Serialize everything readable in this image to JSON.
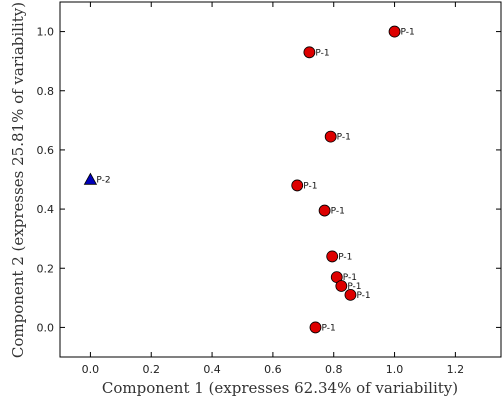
{
  "chart_data": {
    "type": "scatter",
    "xlabel": "Component 1 (expresses 62.34% of variability)",
    "ylabel": "Component 2 (expresses 25.81% of variability)",
    "xlim": [
      -0.1,
      1.35
    ],
    "ylim": [
      -0.1,
      1.1
    ],
    "x_ticks": [
      0.0,
      0.2,
      0.4,
      0.6,
      0.8,
      1.0,
      1.2
    ],
    "y_ticks": [
      0.0,
      0.2,
      0.4,
      0.6,
      0.8,
      1.0
    ],
    "x_tick_labels": [
      "0.0",
      "0.2",
      "0.4",
      "0.6",
      "0.8",
      "1.0",
      "1.2"
    ],
    "y_tick_labels": [
      "0.0",
      "0.2",
      "0.4",
      "0.6",
      "0.8",
      "1.0"
    ],
    "grid": false,
    "series": [
      {
        "marker": "circle",
        "color": "#dd0000",
        "points": [
          {
            "x": 1.0,
            "y": 1.0,
            "label": "P-1"
          },
          {
            "x": 0.72,
            "y": 0.93,
            "label": "P-1"
          },
          {
            "x": 0.79,
            "y": 0.645,
            "label": "P-1"
          },
          {
            "x": 0.68,
            "y": 0.48,
            "label": "P-1"
          },
          {
            "x": 0.77,
            "y": 0.395,
            "label": "P-1"
          },
          {
            "x": 0.795,
            "y": 0.24,
            "label": "P-1"
          },
          {
            "x": 0.81,
            "y": 0.17,
            "label": "P-1"
          },
          {
            "x": 0.825,
            "y": 0.14,
            "label": "P-1"
          },
          {
            "x": 0.855,
            "y": 0.11,
            "label": "P-1"
          },
          {
            "x": 0.74,
            "y": 0.0,
            "label": "P-1"
          }
        ]
      },
      {
        "marker": "triangle",
        "color": "#0000bb",
        "points": [
          {
            "x": 0.0,
            "y": 0.5,
            "label": "P-2"
          }
        ]
      }
    ]
  }
}
